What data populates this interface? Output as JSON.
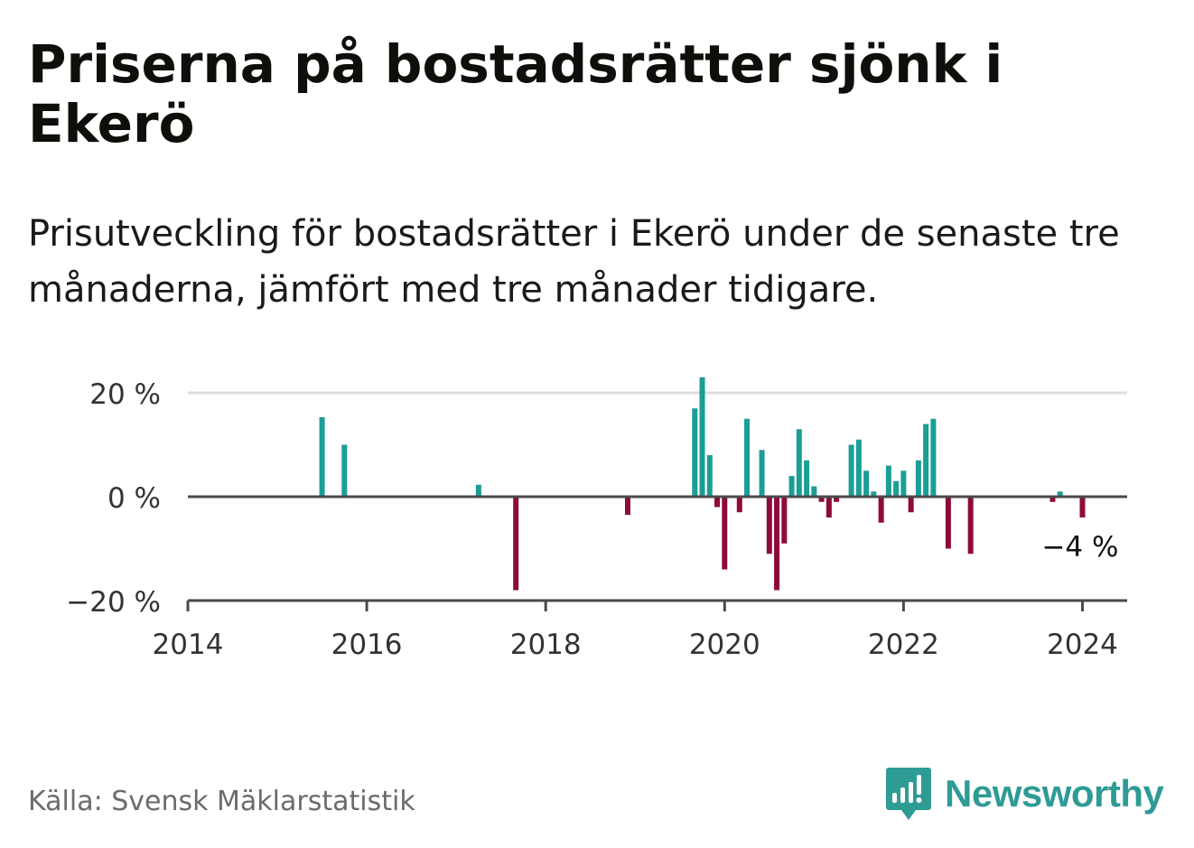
{
  "header": {
    "title": "Priserna på bostadsrätter sjönk i Ekerö",
    "subtitle": "Prisutveckling för bostadsrätter i Ekerö under de senaste tre månaderna, jämfört med tre månader tidigare."
  },
  "footer": {
    "source": "Källa: Svensk Mäklarstatistik",
    "brand": "Newsworthy"
  },
  "colors": {
    "positive": "#1a9e96",
    "negative": "#8e0a3c",
    "axis": "#4a4a4a",
    "grid": "#dddddd",
    "brand": "#2e9b95"
  },
  "chart_data": {
    "type": "bar",
    "title": "Priserna på bostadsrätter sjönk i Ekerö",
    "xlabel": "",
    "ylabel": "",
    "xlim": [
      2014,
      2024.5
    ],
    "ylim": [
      -20,
      20
    ],
    "y_ticks": [
      20,
      0,
      -20
    ],
    "y_tick_labels": [
      "20 %",
      "0 %",
      "−20 %"
    ],
    "x_ticks": [
      2014,
      2016,
      2018,
      2020,
      2022,
      2024
    ],
    "x_tick_labels": [
      "2014",
      "2016",
      "2018",
      "2020",
      "2022",
      "2024"
    ],
    "grid": true,
    "series": [
      {
        "name": "Prisutveckling",
        "x": [
          "2015-07",
          "2015-10",
          "2017-04",
          "2017-09",
          "2018-12",
          "2019-09",
          "2019-10",
          "2019-11",
          "2019-12",
          "2020-01",
          "2020-03",
          "2020-04",
          "2020-06",
          "2020-07",
          "2020-08",
          "2020-09",
          "2020-10",
          "2020-11",
          "2020-12",
          "2021-01",
          "2021-02",
          "2021-03",
          "2021-04",
          "2021-06",
          "2021-07",
          "2021-08",
          "2021-09",
          "2021-10",
          "2021-11",
          "2021-12",
          "2022-01",
          "2022-02",
          "2022-03",
          "2022-04",
          "2022-05",
          "2022-07",
          "2022-10",
          "2023-09",
          "2023-10",
          "2024-01"
        ],
        "values": [
          15.3,
          10,
          2.3,
          -18,
          -3.5,
          17,
          23,
          8,
          -2,
          -14,
          -3,
          15,
          9,
          -11,
          -18,
          -9,
          4,
          13,
          7,
          2,
          -1,
          -4,
          -1,
          10,
          11,
          5,
          1,
          -5,
          6,
          3,
          5,
          -3,
          7,
          14,
          15,
          -10,
          -11,
          -1,
          1,
          -4
        ]
      }
    ],
    "annotations": [
      {
        "text": "−4 %",
        "x": "2024-01",
        "y": -4
      }
    ]
  }
}
